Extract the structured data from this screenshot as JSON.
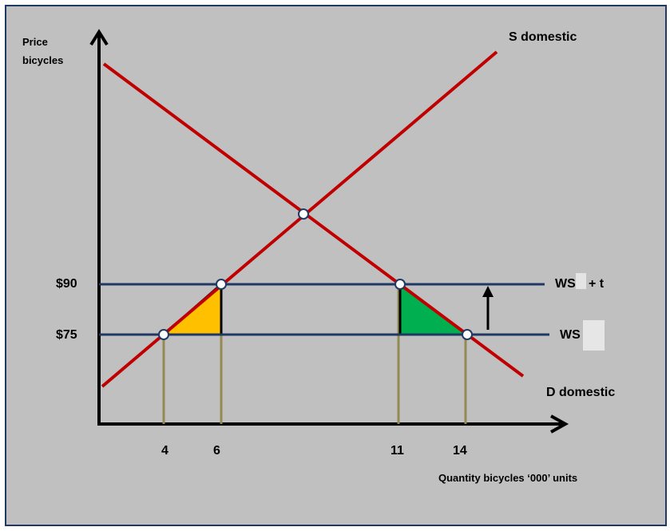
{
  "axes": {
    "y_label_line1": "Price",
    "y_label_line2": "bicycles",
    "x_label": "Quantity bicycles ‘000’ units"
  },
  "curves": {
    "supply_label": "S domestic",
    "demand_label": "D domestic",
    "ws_tariff_label": "WS",
    "ws_tariff_suffix": "+ t",
    "ws_label": "WS"
  },
  "price_ticks": [
    "$90",
    "$75"
  ],
  "quantity_ticks": [
    "4",
    "6",
    "11",
    "14"
  ],
  "colors": {
    "background": "#c0c0c0",
    "border": "#1f3864",
    "supply_demand": "#c00000",
    "world_supply": "#1f3864",
    "drop_lines": "#948a54",
    "deadweight_production": "#ffc000",
    "deadweight_consumption": "#00b050"
  },
  "icons": [
    "up-arrow-icon"
  ]
}
